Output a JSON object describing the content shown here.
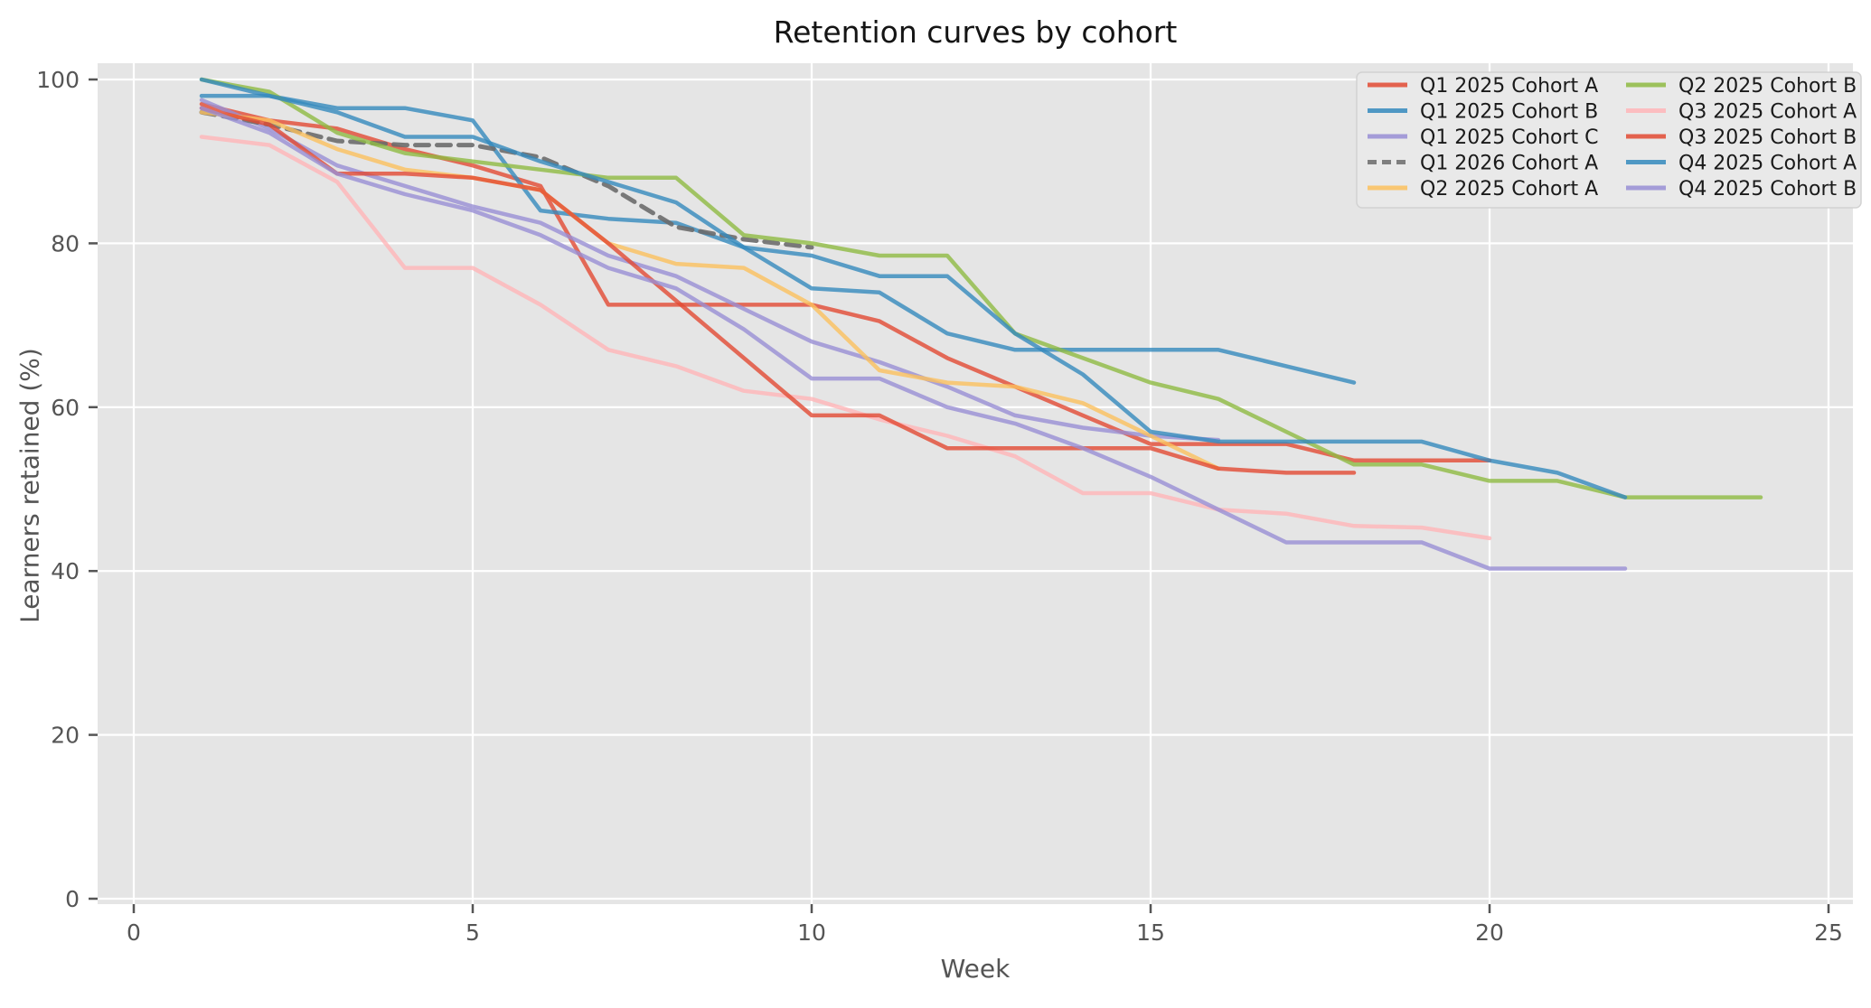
{
  "title": "Retention curves by cohort",
  "chart_data": {
    "type": "line",
    "title": "Retention curves by cohort",
    "xlabel": "Week",
    "ylabel": "Learners retained (%)",
    "xlim": [
      -0.53,
      25.36
    ],
    "ylim": [
      0,
      103
    ],
    "x_ticks": [
      0,
      5,
      10,
      15,
      20,
      25
    ],
    "y_ticks": [
      0,
      20,
      40,
      60,
      80,
      100
    ],
    "grid": true,
    "panel_color": "#E5E5E5",
    "grid_color": "#FFFFFF",
    "tick_color": "#555555",
    "title_color": "#141414",
    "legend_position": "upper-right",
    "legend_ncol": 2,
    "start_week": 1,
    "series": [
      {
        "name": "Q1 2025 Cohort A",
        "color": "#E24A33",
        "dash": false,
        "values": [
          97,
          95,
          94,
          91.5,
          89.5,
          87,
          72.5,
          72.5,
          72.5,
          72.5,
          70.5,
          66,
          62.5,
          59,
          55.5,
          55.5,
          55.5,
          53.5,
          53.5,
          53.5
        ]
      },
      {
        "name": "Q1 2025 Cohort B",
        "color": "#348ABD",
        "dash": false,
        "values": [
          98,
          98,
          96.5,
          96.5,
          95,
          84,
          83,
          82.5,
          79.5,
          74.5,
          74,
          69,
          67,
          67,
          67,
          67,
          65,
          63
        ]
      },
      {
        "name": "Q1 2025 Cohort C",
        "color": "#988ED5",
        "dash": false,
        "values": [
          97.5,
          94,
          89.5,
          87,
          84.5,
          82.5,
          78.5,
          76,
          72,
          68,
          65.5,
          62.5,
          59,
          57.5,
          56.5,
          56
        ]
      },
      {
        "name": "Q1 2026 Cohort A",
        "color": "#6B6B6B",
        "dash": true,
        "values": [
          96,
          94.5,
          92.5,
          92,
          92,
          90.5,
          87,
          82,
          80.5,
          79.5
        ]
      },
      {
        "name": "Q2 2025 Cohort A",
        "color": "#FBC15E",
        "dash": false,
        "values": [
          96,
          95,
          91.5,
          89,
          88,
          86.5,
          80,
          77.5,
          77,
          72.5,
          64.5,
          63,
          62.5,
          60.5,
          56.5,
          52.5
        ]
      },
      {
        "name": "Q2 2025 Cohort B",
        "color": "#8EBA42",
        "dash": false,
        "values": [
          100,
          98.5,
          93.5,
          91,
          90,
          89,
          88,
          88,
          81,
          80,
          78.5,
          78.5,
          69,
          66,
          63,
          61,
          57,
          53,
          53,
          51,
          51,
          49,
          49,
          49
        ]
      },
      {
        "name": "Q3 2025 Cohort A",
        "color": "#FFB5B8",
        "dash": false,
        "values": [
          93,
          92,
          87.5,
          77,
          77,
          72.5,
          67,
          65,
          62,
          61,
          58.5,
          56.5,
          54,
          49.5,
          49.5,
          47.5,
          47,
          45.5,
          45.3,
          44
        ]
      },
      {
        "name": "Q3 2025 Cohort B",
        "color": "#E24A33",
        "dash": false,
        "values": [
          96.5,
          94.5,
          88.5,
          88.5,
          88,
          86.5,
          80,
          73,
          66,
          59,
          59,
          55,
          55,
          55,
          55,
          52.5,
          52,
          52
        ]
      },
      {
        "name": "Q4 2025 Cohort A",
        "color": "#348ABD",
        "dash": false,
        "values": [
          100,
          98,
          96,
          93,
          93,
          90,
          87.5,
          85,
          79.5,
          78.5,
          76,
          76,
          69,
          64,
          57,
          55.8,
          55.8,
          55.8,
          55.8,
          53.5,
          52,
          49
        ]
      },
      {
        "name": "Q4 2025 Cohort B",
        "color": "#988ED5",
        "dash": false,
        "values": [
          96.5,
          93.5,
          88.5,
          86,
          84,
          81,
          77,
          74.5,
          69.5,
          63.5,
          63.5,
          60,
          58,
          55,
          51.5,
          47.5,
          43.5,
          43.5,
          43.5,
          40.3,
          40.3,
          40.3
        ]
      }
    ]
  }
}
